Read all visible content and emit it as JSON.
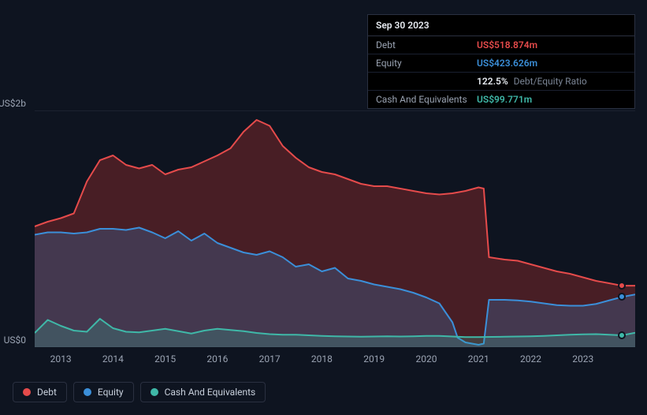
{
  "tooltip": {
    "date": "Sep 30 2023",
    "rows": [
      {
        "label": "Debt",
        "value": "US$518.874m",
        "cls": "debt"
      },
      {
        "label": "Equity",
        "value": "US$423.626m",
        "cls": "equity"
      }
    ],
    "ratio_pct": "122.5%",
    "ratio_label": "Debt/Equity Ratio",
    "cash_label": "Cash And Equivalents",
    "cash_value": "US$99.771m"
  },
  "chart": {
    "type": "area",
    "background_color": "#0e1420",
    "grid_color": "#2a3040",
    "text_color": "#9aa3b2",
    "x_start": 2012.5,
    "x_end": 2024,
    "x_ticks": [
      2013,
      2014,
      2015,
      2016,
      2017,
      2018,
      2019,
      2020,
      2021,
      2022,
      2023
    ],
    "y_min": 0,
    "y_max": 2000,
    "y_labels": [
      {
        "v": 2000,
        "label": "US$2b"
      },
      {
        "v": 0,
        "label": "US$0"
      }
    ],
    "series": [
      {
        "name": "Debt",
        "color": "#e54b4b",
        "fill": "rgba(180,50,50,0.35)",
        "data": [
          [
            2012.5,
            1020
          ],
          [
            2012.75,
            1060
          ],
          [
            2013,
            1090
          ],
          [
            2013.25,
            1130
          ],
          [
            2013.5,
            1400
          ],
          [
            2013.75,
            1580
          ],
          [
            2014,
            1620
          ],
          [
            2014.25,
            1540
          ],
          [
            2014.5,
            1510
          ],
          [
            2014.75,
            1540
          ],
          [
            2015,
            1460
          ],
          [
            2015.25,
            1500
          ],
          [
            2015.5,
            1520
          ],
          [
            2015.75,
            1570
          ],
          [
            2016,
            1620
          ],
          [
            2016.25,
            1680
          ],
          [
            2016.5,
            1820
          ],
          [
            2016.75,
            1920
          ],
          [
            2017,
            1870
          ],
          [
            2017.25,
            1700
          ],
          [
            2017.5,
            1600
          ],
          [
            2017.75,
            1520
          ],
          [
            2018,
            1480
          ],
          [
            2018.25,
            1460
          ],
          [
            2018.5,
            1420
          ],
          [
            2018.75,
            1380
          ],
          [
            2019,
            1360
          ],
          [
            2019.25,
            1360
          ],
          [
            2019.5,
            1340
          ],
          [
            2019.75,
            1320
          ],
          [
            2020,
            1300
          ],
          [
            2020.25,
            1290
          ],
          [
            2020.5,
            1300
          ],
          [
            2020.75,
            1320
          ],
          [
            2021,
            1350
          ],
          [
            2021.1,
            1340
          ],
          [
            2021.2,
            760
          ],
          [
            2021.5,
            740
          ],
          [
            2021.75,
            730
          ],
          [
            2022,
            700
          ],
          [
            2022.25,
            670
          ],
          [
            2022.5,
            640
          ],
          [
            2022.75,
            620
          ],
          [
            2023,
            590
          ],
          [
            2023.25,
            560
          ],
          [
            2023.5,
            540
          ],
          [
            2023.75,
            519
          ],
          [
            2024,
            519
          ]
        ]
      },
      {
        "name": "Equity",
        "color": "#3b8fd9",
        "fill": "rgba(60,120,180,0.30)",
        "data": [
          [
            2012.5,
            950
          ],
          [
            2012.75,
            970
          ],
          [
            2013,
            970
          ],
          [
            2013.25,
            960
          ],
          [
            2013.5,
            970
          ],
          [
            2013.75,
            1000
          ],
          [
            2014,
            1000
          ],
          [
            2014.25,
            990
          ],
          [
            2014.5,
            1010
          ],
          [
            2014.75,
            970
          ],
          [
            2015,
            920
          ],
          [
            2015.25,
            980
          ],
          [
            2015.5,
            900
          ],
          [
            2015.75,
            960
          ],
          [
            2016,
            880
          ],
          [
            2016.25,
            840
          ],
          [
            2016.5,
            800
          ],
          [
            2016.75,
            780
          ],
          [
            2017,
            810
          ],
          [
            2017.25,
            760
          ],
          [
            2017.5,
            680
          ],
          [
            2017.75,
            700
          ],
          [
            2018,
            640
          ],
          [
            2018.25,
            670
          ],
          [
            2018.5,
            580
          ],
          [
            2018.75,
            560
          ],
          [
            2019,
            530
          ],
          [
            2019.25,
            510
          ],
          [
            2019.5,
            490
          ],
          [
            2019.75,
            460
          ],
          [
            2020,
            420
          ],
          [
            2020.25,
            370
          ],
          [
            2020.5,
            210
          ],
          [
            2020.6,
            80
          ],
          [
            2020.75,
            40
          ],
          [
            2021,
            20
          ],
          [
            2021.1,
            30
          ],
          [
            2021.2,
            400
          ],
          [
            2021.5,
            400
          ],
          [
            2021.75,
            395
          ],
          [
            2022,
            385
          ],
          [
            2022.25,
            370
          ],
          [
            2022.5,
            355
          ],
          [
            2022.75,
            350
          ],
          [
            2023,
            350
          ],
          [
            2023.25,
            365
          ],
          [
            2023.5,
            395
          ],
          [
            2023.75,
            424
          ],
          [
            2024,
            445
          ]
        ]
      },
      {
        "name": "Cash And Equivalents",
        "color": "#3fb8a8",
        "fill": "rgba(60,180,160,0.22)",
        "data": [
          [
            2012.5,
            120
          ],
          [
            2012.75,
            230
          ],
          [
            2013,
            180
          ],
          [
            2013.25,
            140
          ],
          [
            2013.5,
            130
          ],
          [
            2013.75,
            240
          ],
          [
            2014,
            160
          ],
          [
            2014.25,
            130
          ],
          [
            2014.5,
            125
          ],
          [
            2014.75,
            140
          ],
          [
            2015,
            155
          ],
          [
            2015.25,
            135
          ],
          [
            2015.5,
            115
          ],
          [
            2015.75,
            140
          ],
          [
            2016,
            155
          ],
          [
            2016.25,
            145
          ],
          [
            2016.5,
            135
          ],
          [
            2016.75,
            120
          ],
          [
            2017,
            110
          ],
          [
            2017.25,
            105
          ],
          [
            2017.5,
            105
          ],
          [
            2017.75,
            100
          ],
          [
            2018,
            95
          ],
          [
            2018.25,
            92
          ],
          [
            2018.5,
            90
          ],
          [
            2018.75,
            88
          ],
          [
            2019,
            90
          ],
          [
            2019.25,
            92
          ],
          [
            2019.5,
            90
          ],
          [
            2019.75,
            92
          ],
          [
            2020,
            95
          ],
          [
            2020.25,
            95
          ],
          [
            2020.5,
            90
          ],
          [
            2020.75,
            85
          ],
          [
            2021,
            85
          ],
          [
            2021.25,
            87
          ],
          [
            2021.5,
            88
          ],
          [
            2021.75,
            90
          ],
          [
            2022,
            92
          ],
          [
            2022.25,
            95
          ],
          [
            2022.5,
            100
          ],
          [
            2022.75,
            105
          ],
          [
            2023,
            108
          ],
          [
            2023.25,
            110
          ],
          [
            2023.5,
            105
          ],
          [
            2023.75,
            100
          ],
          [
            2024,
            122
          ]
        ]
      }
    ],
    "current_x": 2023.75,
    "current_markers": [
      {
        "series": "Debt",
        "y": 519,
        "color": "#e54b4b"
      },
      {
        "series": "Equity",
        "y": 424,
        "color": "#3b8fd9"
      },
      {
        "series": "Cash And Equivalents",
        "y": 100,
        "color": "#3fb8a8"
      }
    ]
  },
  "legend": [
    {
      "label": "Debt",
      "color": "#e54b4b"
    },
    {
      "label": "Equity",
      "color": "#3b8fd9"
    },
    {
      "label": "Cash And Equivalents",
      "color": "#3fb8a8"
    }
  ]
}
